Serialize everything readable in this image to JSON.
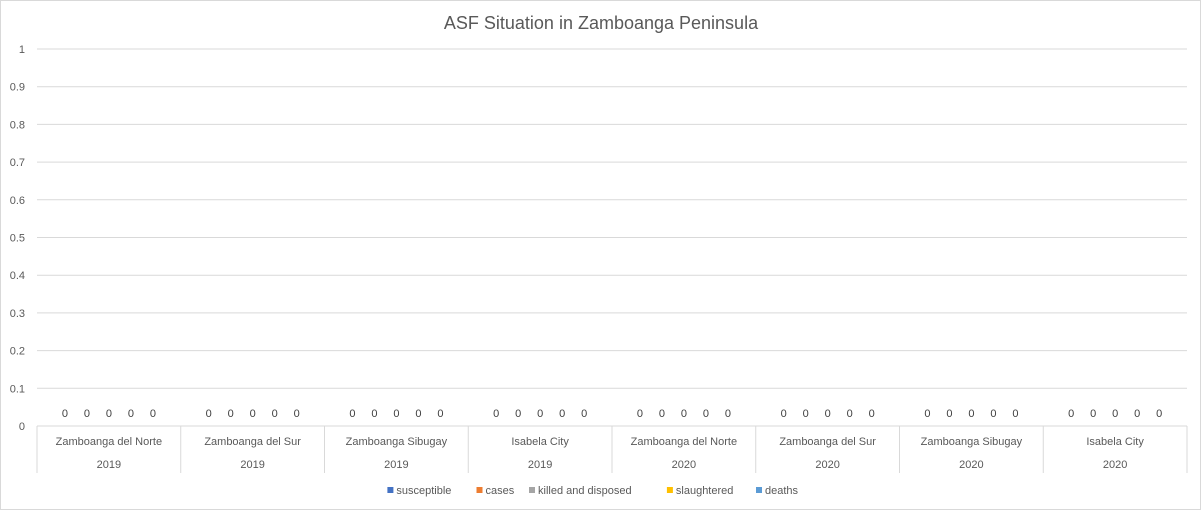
{
  "chart_data": {
    "type": "bar",
    "title": "ASF Situation in Zamboanga Peninsula",
    "xlabel": "",
    "ylabel": "",
    "ylim": [
      0,
      1
    ],
    "yticks": [
      "0",
      "0.1",
      "0.2",
      "0.3",
      "0.4",
      "0.5",
      "0.6",
      "0.7",
      "0.8",
      "0.9",
      "1"
    ],
    "grid": true,
    "legend_position": "bottom",
    "categories": [
      {
        "province": "Zamboanga del Norte",
        "year": "2019"
      },
      {
        "province": "Zamboanga del Sur",
        "year": "2019"
      },
      {
        "province": "Zamboanga Sibugay",
        "year": "2019"
      },
      {
        "province": "Isabela City",
        "year": "2019"
      },
      {
        "province": "Zamboanga del Norte",
        "year": "2020"
      },
      {
        "province": "Zamboanga del Sur",
        "year": "2020"
      },
      {
        "province": "Zamboanga Sibugay",
        "year": "2020"
      },
      {
        "province": "Isabela City",
        "year": "2020"
      }
    ],
    "series": [
      {
        "name": "susceptible",
        "color": "#4472c4",
        "values": [
          0,
          0,
          0,
          0,
          0,
          0,
          0,
          0
        ]
      },
      {
        "name": "cases",
        "color": "#ed7d31",
        "values": [
          0,
          0,
          0,
          0,
          0,
          0,
          0,
          0
        ]
      },
      {
        "name": "killed and disposed",
        "color": "#a5a5a5",
        "values": [
          0,
          0,
          0,
          0,
          0,
          0,
          0,
          0
        ]
      },
      {
        "name": "slaughtered",
        "color": "#ffc000",
        "values": [
          0,
          0,
          0,
          0,
          0,
          0,
          0,
          0
        ]
      },
      {
        "name": "deaths",
        "color": "#5b9bd5",
        "values": [
          0,
          0,
          0,
          0,
          0,
          0,
          0,
          0
        ]
      }
    ]
  }
}
